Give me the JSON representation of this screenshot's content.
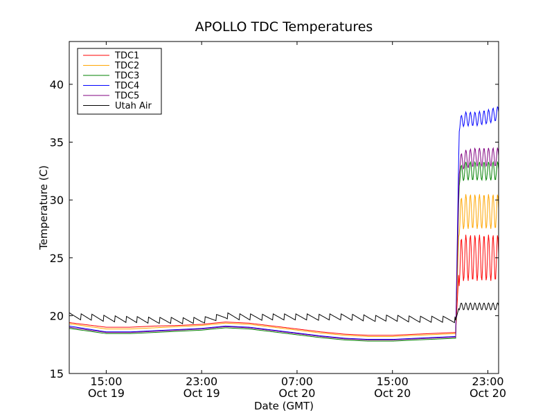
{
  "chart_data": {
    "type": "line",
    "title": "APOLLO TDC Temperatures",
    "xlabel": "Date (GMT)",
    "ylabel": "Temperature (C)",
    "ylim": [
      15,
      43.7
    ],
    "xlim_hours": [
      11.9,
      47.9
    ],
    "yticks": [
      15,
      20,
      25,
      30,
      35,
      40
    ],
    "xticks": [
      {
        "hour": 15,
        "time": "15:00",
        "date": "Oct 19"
      },
      {
        "hour": 23,
        "time": "23:00",
        "date": "Oct 19"
      },
      {
        "hour": 31,
        "time": "07:00",
        "date": "Oct 20"
      },
      {
        "hour": 39,
        "time": "15:00",
        "date": "Oct 20"
      },
      {
        "hour": 47,
        "time": "23:00",
        "date": "Oct 20"
      }
    ],
    "legend_position": "top-left",
    "x_hours": [
      11.9,
      15,
      17,
      19,
      21,
      23,
      25,
      27,
      29,
      31,
      33,
      35,
      37,
      39,
      41,
      44.3,
      44.6,
      45,
      46,
      47,
      47.9
    ],
    "series": [
      {
        "name": "TDC1",
        "color": "#ff0000",
        "values": [
          19.4,
          19.0,
          19.0,
          19.1,
          19.15,
          19.25,
          19.45,
          19.35,
          19.1,
          18.85,
          18.6,
          18.4,
          18.3,
          18.3,
          18.4,
          18.55,
          24.5,
          25.0,
          25.0,
          25.0,
          25.0
        ],
        "osc_amp": 2.0
      },
      {
        "name": "TDC2",
        "color": "#ffa500",
        "values": [
          19.3,
          18.85,
          18.85,
          18.95,
          19.05,
          19.15,
          19.35,
          19.25,
          19.0,
          18.75,
          18.5,
          18.3,
          18.2,
          18.2,
          18.3,
          18.45,
          28.5,
          29.0,
          29.0,
          29.0,
          29.0
        ],
        "osc_amp": 1.5
      },
      {
        "name": "TDC3",
        "color": "#008000",
        "values": [
          18.9,
          18.45,
          18.45,
          18.55,
          18.65,
          18.75,
          18.95,
          18.85,
          18.6,
          18.35,
          18.1,
          17.9,
          17.8,
          17.8,
          17.9,
          18.05,
          32.0,
          32.5,
          32.5,
          32.5,
          32.5
        ],
        "osc_amp": 0.8
      },
      {
        "name": "TDC4",
        "color": "#0000ff",
        "values": [
          19.1,
          18.6,
          18.6,
          18.7,
          18.8,
          18.9,
          19.1,
          19.0,
          18.75,
          18.5,
          18.25,
          18.05,
          17.95,
          17.95,
          18.05,
          18.2,
          36.5,
          37.0,
          37.0,
          37.2,
          37.5
        ],
        "osc_amp": 0.6
      },
      {
        "name": "TDC5",
        "color": "#800080",
        "values": [
          19.0,
          18.55,
          18.55,
          18.65,
          18.75,
          18.85,
          19.05,
          18.95,
          18.7,
          18.45,
          18.2,
          18.0,
          17.9,
          17.9,
          18.0,
          18.15,
          33.0,
          33.5,
          33.7,
          33.7,
          33.7
        ],
        "osc_amp": 0.8
      },
      {
        "name": "Utah Air",
        "color": "#000000",
        "values": [
          19.9,
          19.7,
          19.6,
          19.5,
          19.5,
          19.5,
          19.9,
          19.8,
          19.8,
          19.8,
          19.8,
          19.8,
          19.7,
          19.7,
          19.6,
          19.6,
          20.8,
          20.8,
          20.8,
          20.8,
          20.8
        ],
        "osc_amp": 0.3
      }
    ]
  }
}
